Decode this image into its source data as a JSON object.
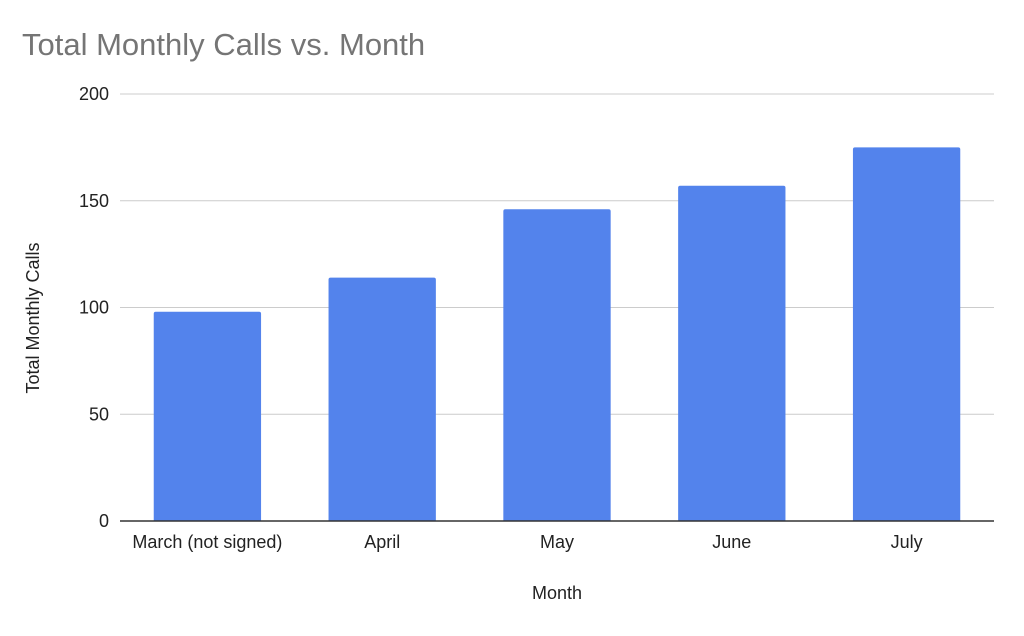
{
  "chart_data": {
    "type": "bar",
    "title": "Total Monthly Calls vs. Month",
    "xlabel": "Month",
    "ylabel": "Total Monthly Calls",
    "categories": [
      "March (not signed)",
      "April",
      "May",
      "June",
      "July"
    ],
    "values": [
      98,
      114,
      146,
      157,
      175
    ],
    "ylim": [
      0,
      200
    ],
    "yticks": [
      0,
      50,
      100,
      150,
      200
    ],
    "grid": true,
    "legend": "none",
    "bar_color": "#5383ec"
  }
}
